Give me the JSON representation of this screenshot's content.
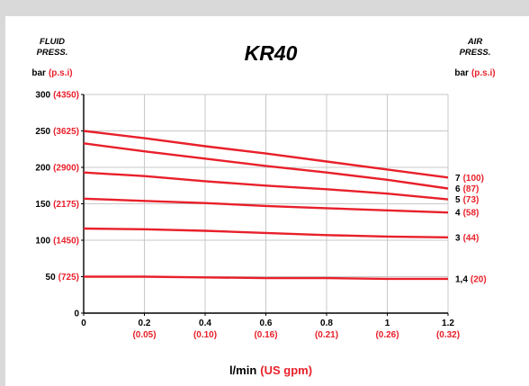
{
  "chart_data": {
    "type": "line",
    "title": "KR40",
    "left_header": [
      "FLUID",
      "PRESS."
    ],
    "right_header": [
      "AIR",
      "PRESS."
    ],
    "left_unit": {
      "main": "bar",
      "alt": "(p.s.i)"
    },
    "right_unit": {
      "main": "bar",
      "alt": "(p.s.i)"
    },
    "xlabel": {
      "main": "l/min",
      "alt": "(US gpm)"
    },
    "xlim": [
      0,
      1.2
    ],
    "ylim": [
      0,
      300
    ],
    "grid": true,
    "x_ticks": [
      {
        "value": 0,
        "main": "0",
        "alt": ""
      },
      {
        "value": 0.2,
        "main": "0.2",
        "alt": "(0.05)"
      },
      {
        "value": 0.4,
        "main": "0.4",
        "alt": "(0.10)"
      },
      {
        "value": 0.6,
        "main": "0.6",
        "alt": "(0.16)"
      },
      {
        "value": 0.8,
        "main": "0.8",
        "alt": "(0.21)"
      },
      {
        "value": 1,
        "main": "1",
        "alt": "(0.26)"
      },
      {
        "value": 1.2,
        "main": "1.2",
        "alt": "(0.32)"
      }
    ],
    "y_ticks": [
      {
        "value": 0,
        "main": "0",
        "alt": ""
      },
      {
        "value": 50,
        "main": "50",
        "alt": "(725)"
      },
      {
        "value": 100,
        "main": "100",
        "alt": "(1450)"
      },
      {
        "value": 150,
        "main": "150",
        "alt": "(2175)"
      },
      {
        "value": 200,
        "main": "200",
        "alt": "(2900)"
      },
      {
        "value": 250,
        "main": "250",
        "alt": "(3625)"
      },
      {
        "value": 300,
        "main": "300",
        "alt": "(4350)"
      }
    ],
    "series": [
      {
        "name": "7",
        "alt": "(100)",
        "x": [
          0,
          0.2,
          0.4,
          0.6,
          0.8,
          1.0,
          1.2
        ],
        "y": [
          250,
          240,
          229,
          219,
          208,
          197,
          186
        ]
      },
      {
        "name": "6",
        "alt": "(87)",
        "x": [
          0,
          0.2,
          0.4,
          0.6,
          0.8,
          1.0,
          1.2
        ],
        "y": [
          233,
          222,
          212,
          202,
          193,
          183,
          171
        ]
      },
      {
        "name": "5",
        "alt": "(73)",
        "x": [
          0,
          0.2,
          0.4,
          0.6,
          0.8,
          1.0,
          1.2
        ],
        "y": [
          193,
          188,
          181,
          175,
          170,
          164,
          156
        ]
      },
      {
        "name": "4",
        "alt": "(58)",
        "x": [
          0,
          0.2,
          0.4,
          0.6,
          0.8,
          1.0,
          1.2
        ],
        "y": [
          157,
          154,
          151,
          147,
          144,
          141,
          138
        ]
      },
      {
        "name": "3",
        "alt": "(44)",
        "x": [
          0,
          0.2,
          0.4,
          0.6,
          0.8,
          1.0,
          1.2
        ],
        "y": [
          116,
          115,
          113,
          110,
          107,
          105,
          104
        ]
      },
      {
        "name": "1,4",
        "alt": "(20)",
        "x": [
          0,
          0.2,
          0.4,
          0.6,
          0.8,
          1.0,
          1.2
        ],
        "y": [
          50,
          50,
          49,
          48,
          48,
          47,
          47
        ]
      }
    ]
  },
  "colors": {
    "line": "#e8202a",
    "alt_text": "#e8202a",
    "grid": "#c8c8c8",
    "axis": "#000000",
    "text": "#000000"
  }
}
